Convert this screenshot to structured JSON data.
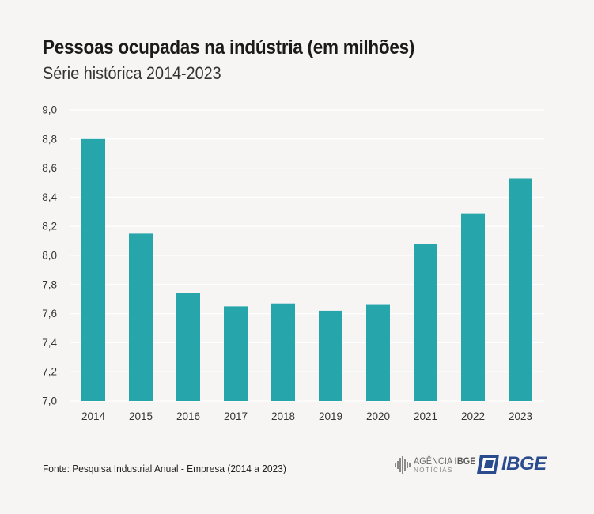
{
  "header": {
    "title": "Pessoas ocupadas na indústria (em milhões)",
    "subtitle": "Série histórica 2014-2023"
  },
  "footer": {
    "source": "Fonte: Pesquisa Industrial Anual - Empresa (2014 a 2023)",
    "agencia_prefix": "AGÊNCIA",
    "agencia_brand": "IBGE",
    "agencia_sub": "NOTÍCIAS",
    "ibge_logo_text": "IBGE"
  },
  "colors": {
    "bar": "#26a5ab",
    "grid": "#ffffff",
    "ibge_blue": "#2a4c8f"
  },
  "chart_data": {
    "type": "bar",
    "title": "Pessoas ocupadas na indústria (em milhões)",
    "subtitle": "Série histórica 2014-2023",
    "xlabel": "",
    "ylabel": "",
    "categories": [
      "2014",
      "2015",
      "2016",
      "2017",
      "2018",
      "2019",
      "2020",
      "2021",
      "2022",
      "2023"
    ],
    "values": [
      8.8,
      8.15,
      7.74,
      7.65,
      7.67,
      7.62,
      7.66,
      8.08,
      8.29,
      8.53
    ],
    "ylim": [
      7.0,
      9.0
    ],
    "yticks": [
      "7,0",
      "7,2",
      "7,4",
      "7,6",
      "7,8",
      "8,0",
      "8,2",
      "8,4",
      "8,6",
      "8,8",
      "9,0"
    ],
    "grid": true,
    "legend": "none"
  }
}
